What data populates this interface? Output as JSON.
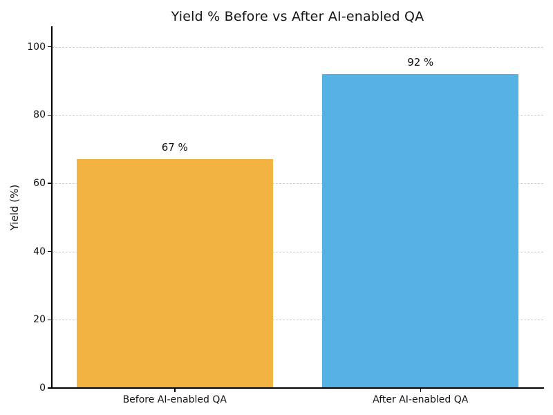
{
  "chart_data": {
    "type": "bar",
    "title": "Yield % Before vs After AI-enabled QA",
    "ylabel": "Yield (%)",
    "xlabel": "",
    "categories": [
      "Before AI-enabled QA",
      "After AI-enabled QA"
    ],
    "values": [
      67,
      92
    ],
    "value_labels": [
      "67 %",
      "92 %"
    ],
    "bar_colors": [
      "#F2B341",
      "#55B2E2"
    ],
    "ylim": [
      0,
      106
    ],
    "yticks": [
      0,
      20,
      40,
      60,
      80,
      100
    ],
    "grid": "horizontal dashed",
    "gridline_color": "#cbcbcb",
    "spine_color": "#000000",
    "legend": "none"
  }
}
